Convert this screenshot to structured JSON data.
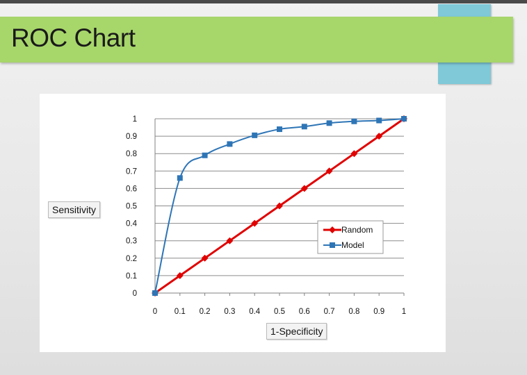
{
  "slide": {
    "title": "ROC Chart"
  },
  "colors": {
    "title_banner": "#a7d66a",
    "accent_block": "#7fc9d8",
    "model_series": "#2e75b6",
    "random_series": "#e00000",
    "gridline": "#8c8c8c"
  },
  "chart_data": {
    "type": "line",
    "xlabel": "1-Specificity",
    "ylabel": "Sensitivity",
    "xlim": [
      0,
      1
    ],
    "ylim": [
      0,
      1
    ],
    "x_ticks": [
      "0",
      "0.1",
      "0.2",
      "0.3",
      "0.4",
      "0.5",
      "0.6",
      "0.7",
      "0.8",
      "0.9",
      "1"
    ],
    "y_ticks": [
      "0",
      "0.1",
      "0.2",
      "0.3",
      "0.4",
      "0.5",
      "0.6",
      "0.7",
      "0.8",
      "0.9",
      "1"
    ],
    "grid": true,
    "legend_position": "bottom-right",
    "series": [
      {
        "name": "Random",
        "color": "#e00000",
        "marker": "diamond",
        "x": [
          0,
          0.1,
          0.2,
          0.3,
          0.4,
          0.5,
          0.6,
          0.7,
          0.8,
          0.9,
          1
        ],
        "y": [
          0,
          0.1,
          0.2,
          0.3,
          0.4,
          0.5,
          0.6,
          0.7,
          0.8,
          0.9,
          1
        ]
      },
      {
        "name": "Model",
        "color": "#2e75b6",
        "marker": "square",
        "x": [
          0,
          0.1,
          0.2,
          0.3,
          0.4,
          0.5,
          0.6,
          0.7,
          0.8,
          0.9,
          1
        ],
        "y": [
          0,
          0.66,
          0.79,
          0.855,
          0.905,
          0.94,
          0.955,
          0.975,
          0.985,
          0.99,
          1
        ]
      }
    ]
  }
}
